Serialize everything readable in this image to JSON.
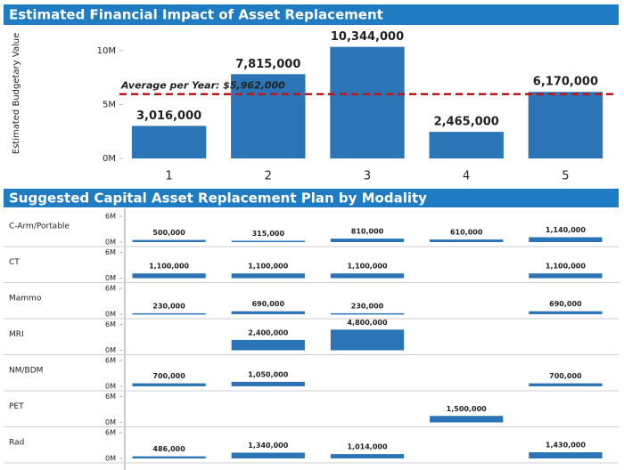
{
  "chart_data": [
    {
      "type": "bar",
      "title": "Estimated Financial Impact of Asset Replacement",
      "y_label": "Estimated Budgetary Value",
      "categories": [
        "1",
        "2",
        "3",
        "4",
        "5"
      ],
      "values": [
        3016000,
        7815000,
        10344000,
        2465000,
        6170000
      ],
      "value_labels": [
        "3,016,000",
        "7,815,000",
        "10,344,000",
        "2,465,000",
        "6,170,000"
      ],
      "color": "#2b74b5",
      "ylim": [
        0,
        11800000
      ],
      "yticks": [
        {
          "value": 0,
          "label": "0M"
        },
        {
          "value": 5000000,
          "label": "5M"
        },
        {
          "value": 10000000,
          "label": "10M"
        }
      ],
      "reference_line": {
        "value": 5962000,
        "label": "Average per Year: $5,962,000",
        "color": "#c0141c"
      }
    },
    {
      "type": "bar",
      "title": "Suggested Capital Asset Replacement Plan by Modality",
      "color": "#2b74b5",
      "ylim": [
        0,
        6000000
      ],
      "yticks": [
        {
          "value": 0,
          "label": "0M"
        },
        {
          "value": 6000000,
          "label": "6M"
        }
      ],
      "series": [
        {
          "name": "C-Arm/Portable",
          "values": [
            500000,
            315000,
            810000,
            610000,
            1140000
          ],
          "value_labels": [
            "500,000",
            "315,000",
            "810,000",
            "610,000",
            "1,140,000"
          ]
        },
        {
          "name": "CT",
          "values": [
            1100000,
            1100000,
            1100000,
            null,
            1100000
          ],
          "value_labels": [
            "1,100,000",
            "1,100,000",
            "1,100,000",
            null,
            "1,100,000"
          ]
        },
        {
          "name": "Mammo",
          "values": [
            230000,
            690000,
            230000,
            null,
            690000
          ],
          "value_labels": [
            "230,000",
            "690,000",
            "230,000",
            null,
            "690,000"
          ]
        },
        {
          "name": "MRI",
          "values": [
            null,
            2400000,
            4800000,
            null,
            null
          ],
          "value_labels": [
            null,
            "2,400,000",
            "4,800,000",
            null,
            null
          ]
        },
        {
          "name": "NM/BDM",
          "values": [
            700000,
            1050000,
            null,
            null,
            700000
          ],
          "value_labels": [
            "700,000",
            "1,050,000",
            null,
            null,
            "700,000"
          ]
        },
        {
          "name": "PET",
          "values": [
            null,
            null,
            null,
            1500000,
            null
          ],
          "value_labels": [
            null,
            null,
            null,
            "1,500,000",
            null
          ]
        },
        {
          "name": "Rad",
          "values": [
            486000,
            1340000,
            1014000,
            null,
            1430000
          ],
          "value_labels": [
            "486,000",
            "1,340,000",
            "1,014,000",
            null,
            "1,430,000"
          ]
        }
      ]
    }
  ]
}
